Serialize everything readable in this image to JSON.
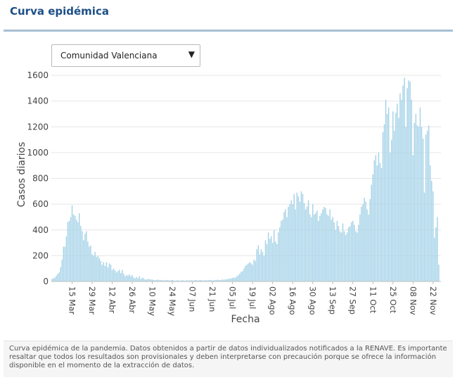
{
  "page": {
    "title": "Curva epidémica",
    "selector": {
      "value": "Comunidad Valenciana",
      "caret": "▼"
    },
    "footer": [
      "Curva epidémica de la pandemia. Datos obtenidos a partir de datos individualizados notificados a la RENAVE. Es importante resaltar que todos los resultados son provisionales y deben interpretarse con precaución porque se",
      "ofrece la información disponible en el momento de la extracción de datos."
    ],
    "colors": {
      "title": "#1d4f86",
      "bar": "#a6d3e8",
      "grid": "#e6e6e6"
    }
  },
  "chart_data": {
    "type": "bar",
    "xlabel": "Fecha",
    "ylabel": "Casos diarios",
    "ylim": [
      0,
      1600
    ],
    "yticks": [
      0,
      200,
      400,
      600,
      800,
      1000,
      1200,
      1400,
      1600
    ],
    "x_start": "2020-03-01",
    "x_end": "2020-11-27",
    "x_tick_labels": [
      "15 Mar",
      "29 Mar",
      "12 Abr",
      "26 Abr",
      "10 May",
      "24 May",
      "07 Jun",
      "21 Jun",
      "05 Jul",
      "19 Jul",
      "02 Ago",
      "16 Ago",
      "30 Ago",
      "13 Sep",
      "27 Sep",
      "11 Oct",
      "25 Oct",
      "08 Nov",
      "22 Nov"
    ],
    "x_tick_dates": [
      "2020-03-15",
      "2020-03-29",
      "2020-04-12",
      "2020-04-26",
      "2020-05-10",
      "2020-05-24",
      "2020-06-07",
      "2020-06-21",
      "2020-07-05",
      "2020-07-19",
      "2020-08-02",
      "2020-08-16",
      "2020-08-30",
      "2020-09-13",
      "2020-09-27",
      "2020-10-11",
      "2020-10-25",
      "2020-11-08",
      "2020-11-22"
    ],
    "grid": "horizontal",
    "values": [
      20,
      25,
      30,
      45,
      60,
      70,
      110,
      170,
      270,
      270,
      350,
      460,
      470,
      500,
      590,
      520,
      510,
      480,
      460,
      530,
      430,
      390,
      320,
      370,
      390,
      310,
      270,
      280,
      210,
      200,
      230,
      190,
      200,
      180,
      160,
      130,
      150,
      120,
      150,
      110,
      140,
      130,
      90,
      100,
      85,
      70,
      80,
      90,
      65,
      90,
      60,
      40,
      50,
      45,
      55,
      40,
      50,
      30,
      25,
      35,
      25,
      40,
      20,
      30,
      25,
      15,
      15,
      20,
      18,
      15,
      15,
      12,
      10,
      12,
      14,
      10,
      12,
      10,
      8,
      10,
      12,
      10,
      8,
      10,
      12,
      8,
      6,
      8,
      10,
      6,
      8,
      10,
      8,
      6,
      10,
      8,
      8,
      10,
      8,
      8,
      12,
      10,
      8,
      10,
      12,
      8,
      8,
      10,
      8,
      10,
      12,
      10,
      8,
      12,
      10,
      12,
      14,
      10,
      12,
      15,
      14,
      16,
      18,
      20,
      22,
      25,
      28,
      30,
      30,
      40,
      50,
      60,
      75,
      80,
      100,
      120,
      130,
      140,
      150,
      140,
      130,
      170,
      160,
      250,
      280,
      210,
      250,
      230,
      200,
      320,
      290,
      380,
      330,
      350,
      300,
      400,
      310,
      290,
      380,
      420,
      470,
      480,
      540,
      560,
      500,
      580,
      600,
      630,
      600,
      680,
      560,
      690,
      660,
      620,
      700,
      680,
      610,
      560,
      580,
      630,
      520,
      500,
      600,
      520,
      530,
      550,
      470,
      510,
      530,
      560,
      580,
      570,
      520,
      510,
      560,
      480,
      500,
      460,
      400,
      470,
      430,
      390,
      380,
      450,
      390,
      360,
      380,
      420,
      430,
      460,
      470,
      440,
      390,
      380,
      440,
      520,
      580,
      600,
      650,
      620,
      560,
      520,
      640,
      750,
      830,
      940,
      980,
      900,
      1000,
      920,
      880,
      1160,
      1220,
      1410,
      1300,
      1350,
      1000,
      1100,
      1320,
      1170,
      1310,
      1380,
      1270,
      1460,
      1410,
      1520,
      1580,
      1200,
      1500,
      1560,
      1550,
      1410,
      980,
      1230,
      1300,
      1210,
      1200,
      1350,
      1200,
      1110,
      690,
      1140,
      1170,
      1210,
      900,
      780,
      700,
      340,
      420,
      500,
      130
    ]
  }
}
